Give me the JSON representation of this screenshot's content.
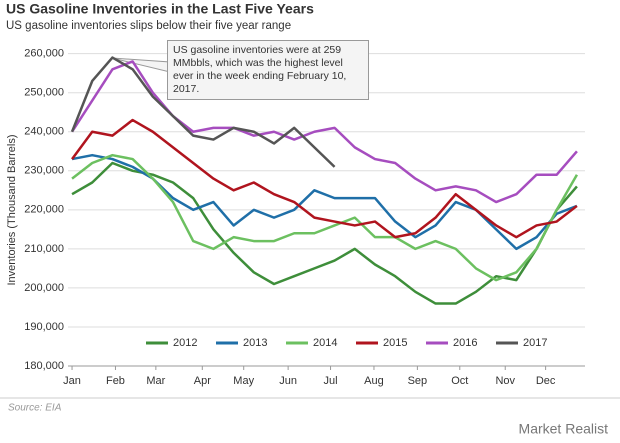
{
  "chart_data": {
    "type": "line",
    "title": "US Gasoline Inventories in the Last Five Years",
    "subtitle": "US gasoline inventories slips below  their five year range",
    "y_label": "Inventories (Thousand  Barrels)",
    "annotation": "US gasoline inventories were at 259 MMbbls, which was the highest level ever in the week ending February 10, 2017.",
    "source": "Source: EIA",
    "watermark": "Market Realist",
    "grid": true,
    "legend": "bottom",
    "xlim": [
      -0.4,
      50.8
    ],
    "xticks": [
      {
        "value": 0,
        "label": "Jan"
      },
      {
        "value": 4.3,
        "label": "Feb"
      },
      {
        "value": 8.3,
        "label": "Mar"
      },
      {
        "value": 12.9,
        "label": "Apr"
      },
      {
        "value": 17,
        "label": "May"
      },
      {
        "value": 21.4,
        "label": "Jun"
      },
      {
        "value": 25.6,
        "label": "Jul"
      },
      {
        "value": 29.9,
        "label": "Aug"
      },
      {
        "value": 34.2,
        "label": "Sep"
      },
      {
        "value": 38.4,
        "label": "Oct"
      },
      {
        "value": 42.9,
        "label": "Nov"
      },
      {
        "value": 46.9,
        "label": "Dec"
      }
    ],
    "ylim": [
      180000,
      263500
    ],
    "yticks": [
      {
        "value": 180000,
        "label": "180,000"
      },
      {
        "value": 190000,
        "label": "190,000"
      },
      {
        "value": 200000,
        "label": "200,000"
      },
      {
        "value": 210000,
        "label": "210,000"
      },
      {
        "value": 220000,
        "label": "220,000"
      },
      {
        "value": 230000,
        "label": "230,000"
      },
      {
        "value": 240000,
        "label": "240,000"
      },
      {
        "value": 250000,
        "label": "250,000"
      },
      {
        "value": 260000,
        "label": "260,000"
      }
    ],
    "x": [
      0,
      2,
      4,
      6,
      8,
      10,
      12,
      14,
      16,
      18,
      20,
      22,
      24,
      26,
      28,
      30,
      32,
      34,
      36,
      38,
      40,
      42,
      44,
      46,
      48,
      50
    ],
    "series": [
      {
        "name": "2012",
        "color": "#3e8e3a",
        "values": [
          224000,
          227000,
          232000,
          230000,
          229000,
          227000,
          223000,
          215000,
          209000,
          204000,
          201000,
          203000,
          205000,
          207000,
          210000,
          206000,
          203000,
          199000,
          196000,
          196000,
          199000,
          203000,
          202000,
          210000,
          220000,
          226000
        ]
      },
      {
        "name": "2013",
        "color": "#1f6fa8",
        "values": [
          233000,
          234000,
          233000,
          231000,
          228000,
          223000,
          220000,
          222000,
          216000,
          220000,
          218000,
          220000,
          225000,
          223000,
          223000,
          223000,
          217000,
          213000,
          216000,
          222000,
          220000,
          215000,
          210000,
          213000,
          219000,
          221000
        ]
      },
      {
        "name": "2014",
        "color": "#6cc060",
        "values": [
          228000,
          232000,
          234000,
          233000,
          228000,
          222000,
          212000,
          210000,
          213000,
          212000,
          212000,
          214000,
          214000,
          216000,
          218000,
          213000,
          213000,
          210000,
          212000,
          210000,
          205000,
          202000,
          204000,
          210000,
          220000,
          229000
        ]
      },
      {
        "name": "2015",
        "color": "#b0141e",
        "values": [
          233000,
          240000,
          239000,
          243000,
          240000,
          236000,
          232000,
          228000,
          225000,
          227000,
          224000,
          222000,
          218000,
          217000,
          216000,
          217000,
          213000,
          214000,
          218000,
          224000,
          220000,
          216000,
          213000,
          216000,
          217000,
          221000
        ]
      },
      {
        "name": "2016",
        "color": "#a64dbf",
        "values": [
          240000,
          248000,
          256000,
          258000,
          250000,
          244000,
          240000,
          241000,
          241000,
          239000,
          240000,
          238000,
          240000,
          241000,
          236000,
          233000,
          232000,
          228000,
          225000,
          226000,
          225000,
          222000,
          224000,
          229000,
          229000,
          235000
        ]
      },
      {
        "name": "2017",
        "color": "#555555",
        "values": [
          240000,
          253000,
          259000,
          256000,
          249000,
          244000,
          239000,
          238000,
          241000,
          240000,
          237000,
          241000,
          236000,
          231000,
          null,
          null,
          null,
          null,
          null,
          null,
          null,
          null,
          null,
          null,
          null,
          null
        ]
      }
    ]
  }
}
